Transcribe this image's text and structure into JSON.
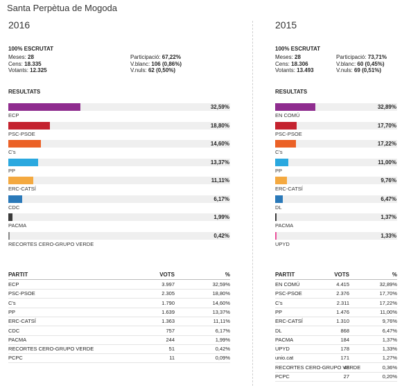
{
  "page_title": "Santa Perpètua de Mogoda",
  "labels": {
    "escrutat": "100% ESCRUTAT",
    "resultats": "RESULTATS",
    "meses": "Meses: ",
    "cens": "Cens: ",
    "votants": "Votants: ",
    "participacio": "Participació: ",
    "vblanc": "V.blanc: ",
    "vnuls": "V.nuls: ",
    "col_partit": "PARTIT",
    "col_vots": "VOTS",
    "col_pct": "%"
  },
  "colors": {
    "ECP": "#8f2d8f",
    "EN COMÚ": "#8f2d8f",
    "PSC-PSOE": "#c4222f",
    "C's": "#eb6126",
    "PP": "#2aa8df",
    "ERC-CATSÍ": "#f4a940",
    "CDC": "#2a79b9",
    "DL": "#2a79b9",
    "PACMA": "#3a3a3a",
    "RECORTES CERO-GRUPO VERDE": "#888888",
    "UPYD": "#ea4f9a"
  },
  "chart_data": [
    {
      "type": "bar",
      "title": "2016",
      "stats": {
        "meses": "28",
        "cens": "18.335",
        "votants": "12.325",
        "participacio": "67,22%",
        "vblanc": "106 (0,86%)",
        "vnuls": "62 (0,50%)"
      },
      "categories": [
        "ECP",
        "PSC-PSOE",
        "C's",
        "PP",
        "ERC-CATSÍ",
        "CDC",
        "PACMA",
        "RECORTES CERO-GRUPO VERDE"
      ],
      "values": [
        32.59,
        18.8,
        14.6,
        13.37,
        11.11,
        6.17,
        1.99,
        0.42
      ],
      "value_labels": [
        "32,59%",
        "18,80%",
        "14,60%",
        "13,37%",
        "11,11%",
        "6,17%",
        "1,99%",
        "0,42%"
      ],
      "xlim": [
        0,
        100
      ],
      "table": [
        {
          "partit": "ECP",
          "vots": "3.997",
          "pct": "32,59%"
        },
        {
          "partit": "PSC-PSOE",
          "vots": "2.305",
          "pct": "18,80%"
        },
        {
          "partit": "C's",
          "vots": "1.790",
          "pct": "14,60%"
        },
        {
          "partit": "PP",
          "vots": "1.639",
          "pct": "13,37%"
        },
        {
          "partit": "ERC-CATSÍ",
          "vots": "1.363",
          "pct": "11,11%"
        },
        {
          "partit": "CDC",
          "vots": "757",
          "pct": "6,17%"
        },
        {
          "partit": "PACMA",
          "vots": "244",
          "pct": "1,99%"
        },
        {
          "partit": "RECORTES CERO-GRUPO VERDE",
          "vots": "51",
          "pct": "0,42%"
        },
        {
          "partit": "PCPC",
          "vots": "11",
          "pct": "0,09%"
        }
      ]
    },
    {
      "type": "bar",
      "title": "2015",
      "stats": {
        "meses": "28",
        "cens": "18.306",
        "votants": "13.493",
        "participacio": "73,71%",
        "vblanc": "60 (0,45%)",
        "vnuls": "69 (0,51%)"
      },
      "categories": [
        "EN COMÚ",
        "PSC-PSOE",
        "C's",
        "PP",
        "ERC-CATSÍ",
        "DL",
        "PACMA",
        "UPYD"
      ],
      "values": [
        32.89,
        17.7,
        17.22,
        11.0,
        9.76,
        6.47,
        1.37,
        1.33
      ],
      "value_labels": [
        "32,89%",
        "17,70%",
        "17,22%",
        "11,00%",
        "9,76%",
        "6,47%",
        "1,37%",
        "1,33%"
      ],
      "xlim": [
        0,
        100
      ],
      "table": [
        {
          "partit": "EN COMÚ",
          "vots": "4.415",
          "pct": "32,89%"
        },
        {
          "partit": "PSC-PSOE",
          "vots": "2.376",
          "pct": "17,70%"
        },
        {
          "partit": "C's",
          "vots": "2.311",
          "pct": "17,22%"
        },
        {
          "partit": "PP",
          "vots": "1.476",
          "pct": "11,00%"
        },
        {
          "partit": "ERC-CATSÍ",
          "vots": "1.310",
          "pct": "9,76%"
        },
        {
          "partit": "DL",
          "vots": "868",
          "pct": "6,47%"
        },
        {
          "partit": "PACMA",
          "vots": "184",
          "pct": "1,37%"
        },
        {
          "partit": "UPYD",
          "vots": "178",
          "pct": "1,33%"
        },
        {
          "partit": "unio.cat",
          "vots": "171",
          "pct": "1,27%"
        },
        {
          "partit": "RECORTES CERO-GRUPO VERDE",
          "vots": "48",
          "pct": "0,36%"
        },
        {
          "partit": "PCPC",
          "vots": "27",
          "pct": "0,20%"
        }
      ]
    }
  ]
}
